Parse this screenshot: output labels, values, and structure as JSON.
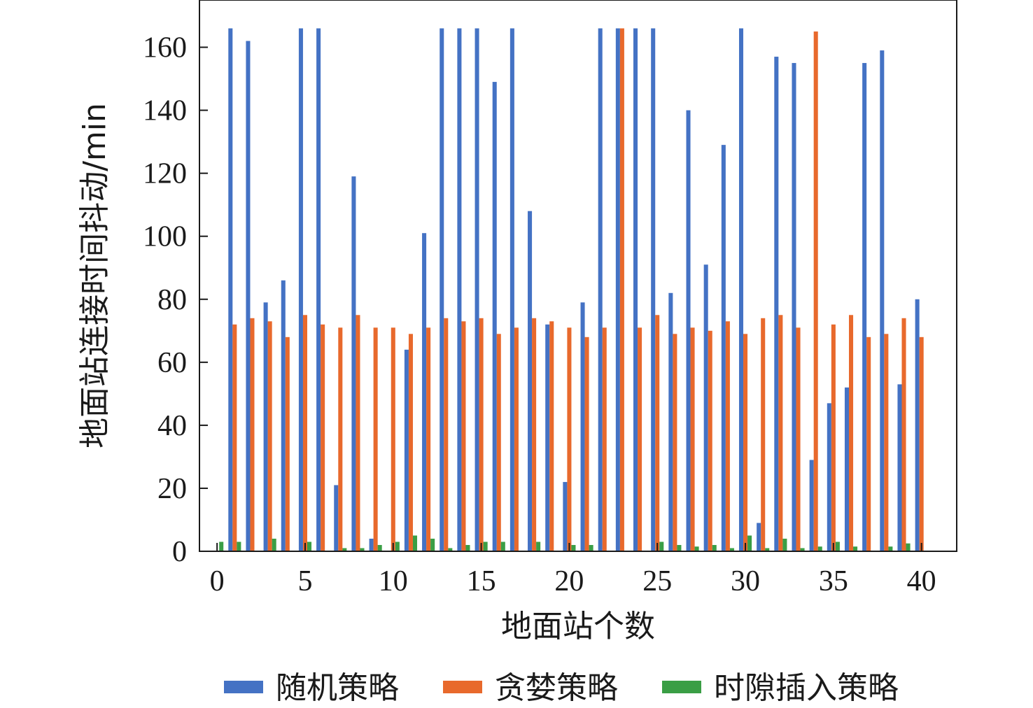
{
  "colors": {
    "random": "#4472C4",
    "greedy": "#E8692C",
    "slot": "#3A9E45",
    "axis": "#1a1a1a"
  },
  "chart_data": {
    "type": "bar",
    "xlabel": "地面站个数",
    "ylabel": "地面站连接时间抖动/min",
    "xlim": [
      -1,
      42
    ],
    "ylim": [
      0,
      175
    ],
    "xticks": [
      0,
      5,
      10,
      15,
      20,
      25,
      30,
      35,
      40
    ],
    "xtick_labels": [
      "0",
      "5",
      "10",
      "15",
      "20",
      "25",
      "30",
      "35",
      "40"
    ],
    "yticks": [
      0,
      20,
      40,
      60,
      80,
      100,
      120,
      140,
      160
    ],
    "ytick_labels": [
      "0",
      "20",
      "40",
      "60",
      "80",
      "100",
      "120",
      "140",
      "160"
    ],
    "legend_position": "bottom",
    "x": [
      0,
      1,
      2,
      3,
      4,
      5,
      6,
      7,
      8,
      9,
      10,
      11,
      12,
      13,
      14,
      15,
      16,
      17,
      18,
      19,
      20,
      21,
      22,
      23,
      24,
      25,
      26,
      27,
      28,
      29,
      30,
      31,
      32,
      33,
      34,
      35,
      36,
      37,
      38,
      39,
      40
    ],
    "series": [
      {
        "name": "随机策略",
        "key": "random",
        "values": [
          0,
          166,
          162,
          79,
          86,
          166,
          166,
          21,
          119,
          4,
          0,
          64,
          101,
          166,
          166,
          166,
          149,
          166,
          108,
          72,
          22,
          79,
          166,
          166,
          166,
          166,
          82,
          140,
          91,
          129,
          166,
          9,
          157,
          155,
          29,
          47,
          52,
          155,
          159,
          53,
          80
        ]
      },
      {
        "name": "贪婪策略",
        "key": "greedy",
        "values": [
          0,
          72,
          74,
          73,
          68,
          75,
          72,
          71,
          75,
          71,
          71,
          69,
          71,
          74,
          73,
          74,
          69,
          71,
          74,
          73,
          71,
          68,
          71,
          166,
          71,
          75,
          69,
          71,
          70,
          73,
          69,
          74,
          75,
          71,
          165,
          72,
          75,
          68,
          69,
          74,
          68
        ]
      },
      {
        "name": "时隙插入策略",
        "key": "slot",
        "values": [
          3,
          3,
          0,
          4,
          0,
          3,
          0,
          1,
          1,
          2,
          3,
          5,
          4,
          1,
          2,
          3,
          3,
          0,
          3,
          0,
          2,
          2,
          0,
          0,
          0,
          3,
          2,
          1.5,
          2,
          1,
          5,
          1,
          4,
          1,
          1.5,
          3,
          1.5,
          0,
          1.5,
          2.5,
          0
        ]
      }
    ]
  }
}
